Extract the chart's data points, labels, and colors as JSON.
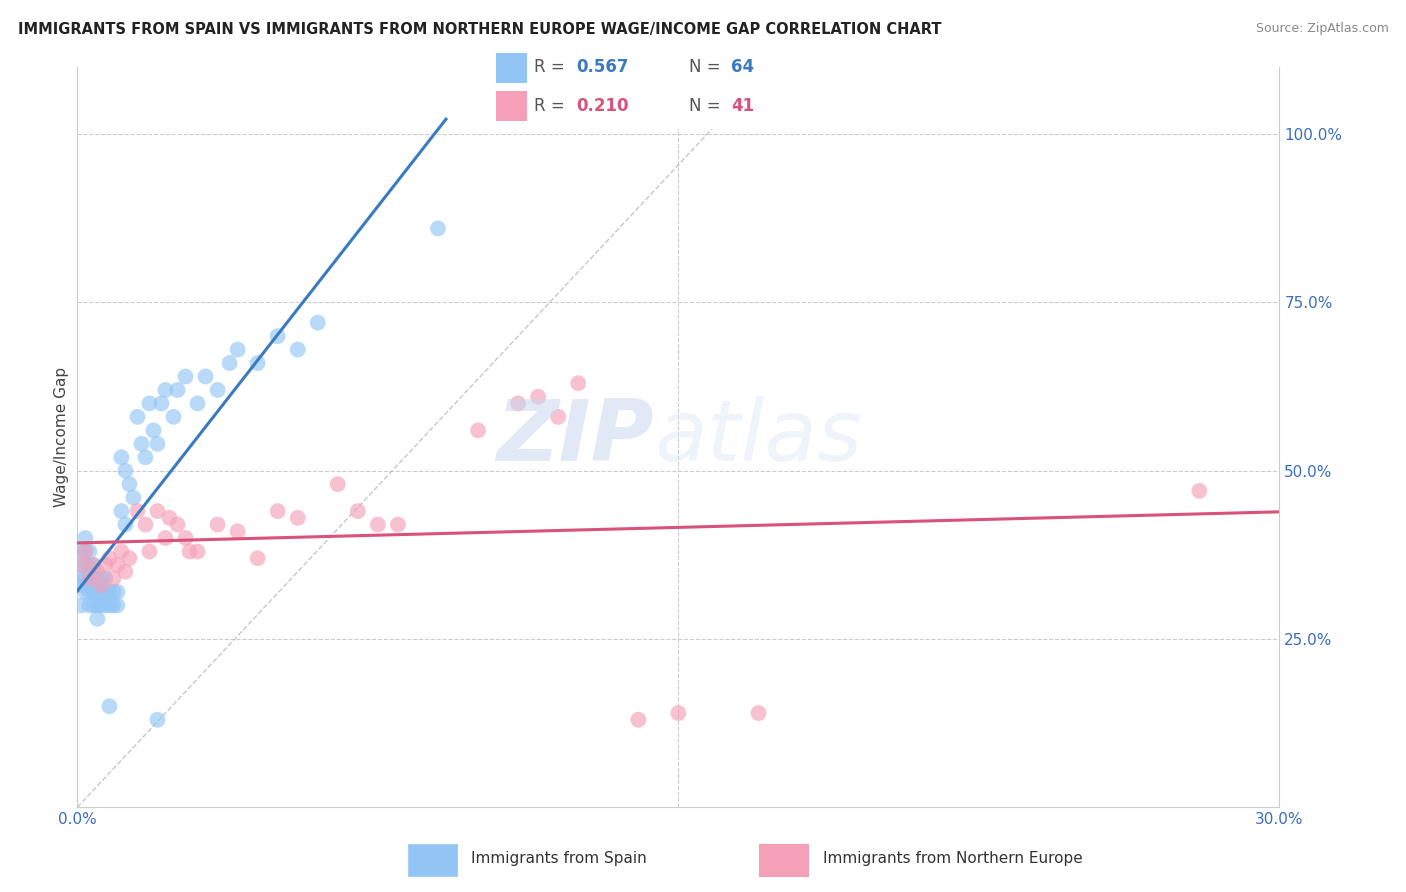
{
  "title": "IMMIGRANTS FROM SPAIN VS IMMIGRANTS FROM NORTHERN EUROPE WAGE/INCOME GAP CORRELATION CHART",
  "source": "Source: ZipAtlas.com",
  "ylabel": "Wage/Income Gap",
  "right_ytick_labels": [
    "25.0%",
    "50.0%",
    "75.0%",
    "100.0%"
  ],
  "right_ytick_values": [
    0.25,
    0.5,
    0.75,
    1.0
  ],
  "xlim": [
    0.0,
    0.3
  ],
  "ylim": [
    0.0,
    1.1
  ],
  "xtick_labels": [
    "0.0%",
    "",
    "",
    "",
    "",
    "",
    "30.0%"
  ],
  "xtick_values": [
    0.0,
    0.05,
    0.1,
    0.15,
    0.2,
    0.25,
    0.3
  ],
  "legend_label_blue": "Immigrants from Spain",
  "legend_label_pink": "Immigrants from Northern Europe",
  "blue_color": "#92c5f5",
  "pink_color": "#f5a0b8",
  "blue_line_color": "#3a7abf",
  "pink_line_color": "#d9527a",
  "watermark_zip": "ZIP",
  "watermark_atlas": "atlas",
  "blue_scatter_x": [
    0.001,
    0.001,
    0.001,
    0.001,
    0.001,
    0.002,
    0.002,
    0.002,
    0.002,
    0.002,
    0.003,
    0.003,
    0.003,
    0.003,
    0.003,
    0.004,
    0.004,
    0.004,
    0.004,
    0.005,
    0.005,
    0.005,
    0.005,
    0.006,
    0.006,
    0.006,
    0.007,
    0.007,
    0.007,
    0.008,
    0.008,
    0.009,
    0.009,
    0.01,
    0.01,
    0.011,
    0.011,
    0.012,
    0.012,
    0.013,
    0.014,
    0.015,
    0.016,
    0.017,
    0.018,
    0.019,
    0.02,
    0.021,
    0.022,
    0.024,
    0.025,
    0.027,
    0.03,
    0.032,
    0.035,
    0.038,
    0.04,
    0.045,
    0.05,
    0.055,
    0.06,
    0.09,
    0.02,
    0.008
  ],
  "blue_scatter_y": [
    0.3,
    0.33,
    0.36,
    0.38,
    0.34,
    0.32,
    0.34,
    0.36,
    0.38,
    0.4,
    0.3,
    0.32,
    0.34,
    0.36,
    0.38,
    0.3,
    0.32,
    0.34,
    0.36,
    0.28,
    0.3,
    0.32,
    0.34,
    0.3,
    0.32,
    0.34,
    0.3,
    0.32,
    0.34,
    0.3,
    0.32,
    0.3,
    0.32,
    0.3,
    0.32,
    0.44,
    0.52,
    0.42,
    0.5,
    0.48,
    0.46,
    0.58,
    0.54,
    0.52,
    0.6,
    0.56,
    0.54,
    0.6,
    0.62,
    0.58,
    0.62,
    0.64,
    0.6,
    0.64,
    0.62,
    0.66,
    0.68,
    0.66,
    0.7,
    0.68,
    0.72,
    0.86,
    0.13,
    0.15
  ],
  "pink_scatter_x": [
    0.001,
    0.002,
    0.003,
    0.004,
    0.005,
    0.006,
    0.007,
    0.008,
    0.009,
    0.01,
    0.011,
    0.012,
    0.013,
    0.015,
    0.017,
    0.018,
    0.02,
    0.022,
    0.023,
    0.025,
    0.027,
    0.028,
    0.03,
    0.035,
    0.04,
    0.045,
    0.05,
    0.055,
    0.065,
    0.07,
    0.075,
    0.08,
    0.1,
    0.11,
    0.115,
    0.12,
    0.125,
    0.14,
    0.15,
    0.17,
    0.28
  ],
  "pink_scatter_y": [
    0.36,
    0.38,
    0.34,
    0.36,
    0.35,
    0.33,
    0.36,
    0.37,
    0.34,
    0.36,
    0.38,
    0.35,
    0.37,
    0.44,
    0.42,
    0.38,
    0.44,
    0.4,
    0.43,
    0.42,
    0.4,
    0.38,
    0.38,
    0.42,
    0.41,
    0.37,
    0.44,
    0.43,
    0.48,
    0.44,
    0.42,
    0.42,
    0.56,
    0.6,
    0.61,
    0.58,
    0.63,
    0.13,
    0.14,
    0.14,
    0.47
  ]
}
